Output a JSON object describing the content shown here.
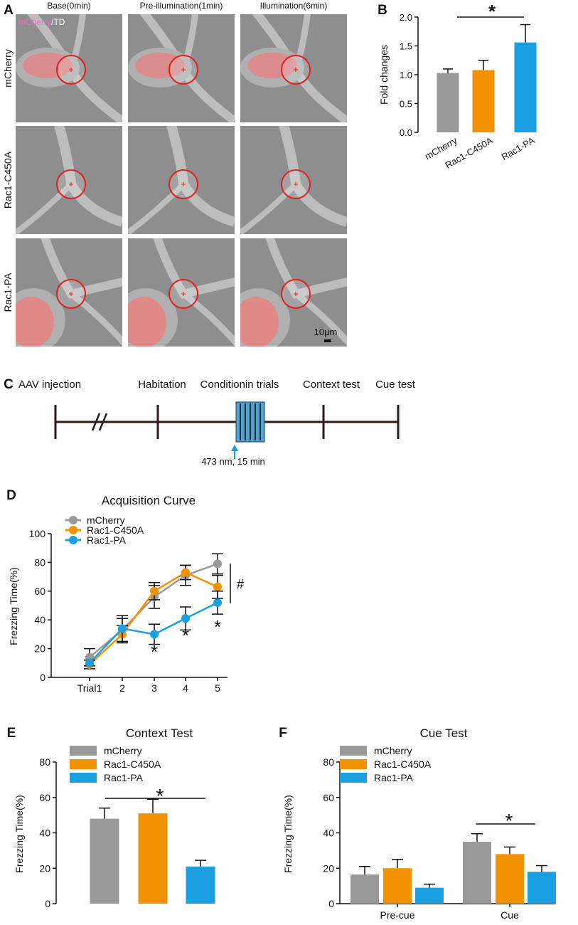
{
  "colors": {
    "mcherry": "#999999",
    "c450a": "#f39200",
    "pa": "#1a9fe0",
    "rfp": "#ff7070",
    "circle": "#e02020",
    "cell_bg": "#8e8e8e",
    "label_pink": "#ff66cc",
    "cs_fill": "#4ea3cf"
  },
  "panels": {
    "A": {
      "label": "A",
      "col_titles": [
        "Base(0min)",
        "Pre-illumination(1min)",
        "Illumination(6min)"
      ],
      "row_labels": [
        "mCherry",
        "Rac1-C450A",
        "Rac1-PA"
      ],
      "overlay_mcherry": "mCherry",
      "overlay_td": "/TD",
      "scalebar": "10μm"
    },
    "C": {
      "label": "C",
      "stages": [
        "AAV injection",
        "Habitation",
        "Conditionin trials",
        "Context test",
        "Cue test"
      ],
      "light_note": "473 nm, 15 min"
    }
  },
  "chart_data": [
    {
      "id": "B",
      "label": "B",
      "type": "bar",
      "title": "",
      "ylabel": "Fold changes",
      "ylim": [
        0,
        2.0
      ],
      "yticks": [
        "0.0",
        "0.5",
        "1.0",
        "1.5",
        "2.0"
      ],
      "categories": [
        "mCherry",
        "Rac1-C450A",
        "Rac1-PA"
      ],
      "values": [
        1.03,
        1.08,
        1.56
      ],
      "errors": [
        0.07,
        0.17,
        0.31
      ],
      "significance": {
        "from": 0,
        "to": 2,
        "label": "*"
      }
    },
    {
      "id": "D",
      "label": "D",
      "type": "line",
      "title": "Acquisition Curve",
      "ylabel": "Frezzing Time(%)",
      "ylim": [
        0,
        100
      ],
      "yticks": [
        "0",
        "20",
        "40",
        "60",
        "80",
        "100"
      ],
      "x_ticks": [
        "Trial1",
        "2",
        "3",
        "4",
        "5"
      ],
      "series": [
        {
          "name": "mCherry",
          "values": [
            14,
            33,
            56,
            71,
            79
          ],
          "errors": [
            6,
            8,
            8,
            7,
            7
          ]
        },
        {
          "name": "Rac1-C450A",
          "values": [
            9,
            30,
            60,
            73,
            63
          ],
          "errors": [
            3,
            6,
            6,
            5,
            8
          ]
        },
        {
          "name": "Rac1-PA",
          "values": [
            10,
            34,
            30,
            41,
            52
          ],
          "errors": [
            2,
            9,
            7,
            8,
            8
          ]
        }
      ],
      "stars": [
        {
          "trial": 3,
          "label": "*"
        },
        {
          "trial": 4,
          "label": "*"
        },
        {
          "trial": 5,
          "label": "*"
        }
      ],
      "hash_label": "#"
    },
    {
      "id": "E",
      "label": "E",
      "type": "bar",
      "title": "Context Test",
      "ylabel": "Frezzing Time(%)",
      "ylim": [
        0,
        80
      ],
      "yticks": [
        "0",
        "20",
        "40",
        "60",
        "80"
      ],
      "series": [
        {
          "name": "mCherry",
          "values": [
            48
          ],
          "errors": [
            6
          ]
        },
        {
          "name": "Rac1-C450A",
          "values": [
            51
          ],
          "errors": [
            8
          ]
        },
        {
          "name": "Rac1-PA",
          "values": [
            21
          ],
          "errors": [
            3.5
          ]
        }
      ],
      "significance": {
        "label": "*"
      }
    },
    {
      "id": "F",
      "label": "F",
      "type": "bar",
      "title": "Cue Test",
      "ylabel": "Frezzing Time(%)",
      "ylim": [
        0,
        80
      ],
      "yticks": [
        "0",
        "20",
        "40",
        "60",
        "80"
      ],
      "categories": [
        "Pre-cue",
        "Cue"
      ],
      "series": [
        {
          "name": "mCherry",
          "values": [
            16.5,
            35
          ],
          "errors": [
            4.5,
            4.5
          ]
        },
        {
          "name": "Rac1-C450A",
          "values": [
            20,
            28
          ],
          "errors": [
            5,
            4
          ]
        },
        {
          "name": "Rac1-PA",
          "values": [
            9,
            18
          ],
          "errors": [
            2,
            3.5
          ]
        }
      ],
      "significance": {
        "category": 1,
        "label": "*"
      }
    }
  ]
}
